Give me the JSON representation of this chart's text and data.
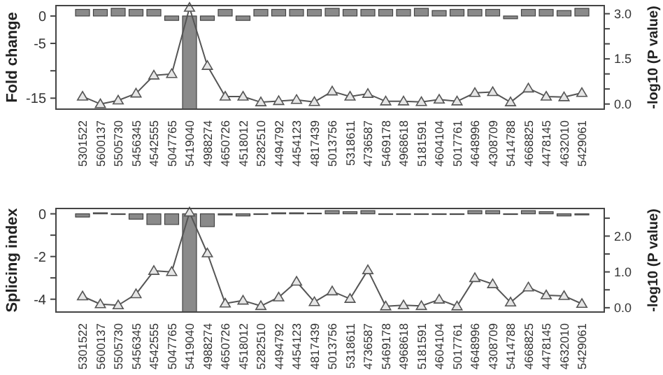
{
  "chart_data": [
    {
      "type": "bar",
      "ylabel": "Fold change",
      "y2label": "-log10 (P value)",
      "categories": [
        "5301522",
        "5600137",
        "5505730",
        "5456345",
        "4542555",
        "5047765",
        "5419040",
        "4988274",
        "4650726",
        "4518012",
        "5282510",
        "4494792",
        "4454123",
        "4817439",
        "5013756",
        "5318611",
        "4736587",
        "5469178",
        "4968618",
        "5181591",
        "4604104",
        "5017761",
        "4648996",
        "4308709",
        "5414788",
        "4668825",
        "4478145",
        "4632010",
        "5429061"
      ],
      "series": [
        {
          "color": "#8a8a8a",
          "values": [
            1.2,
            1.2,
            1.4,
            1.2,
            1.2,
            -0.8,
            -17,
            -0.8,
            1.2,
            -0.8,
            1.2,
            1.2,
            1.2,
            1.2,
            1.4,
            1.2,
            1.2,
            1.2,
            1.2,
            1.4,
            1.0,
            1.2,
            1.2,
            1.2,
            -0.5,
            1.2,
            1.2,
            1.0,
            1.4
          ]
        },
        {
          "type": "line",
          "axis": "y2",
          "color": "#555555",
          "values": [
            0.25,
            0.0,
            0.12,
            0.35,
            0.95,
            1.0,
            3.2,
            1.27,
            0.25,
            0.25,
            0.06,
            0.1,
            0.14,
            0.07,
            0.42,
            0.25,
            0.34,
            0.09,
            0.09,
            0.07,
            0.15,
            0.09,
            0.37,
            0.4,
            0.06,
            0.52,
            0.25,
            0.23,
            0.37
          ]
        }
      ],
      "ylim": [
        -17,
        1.9
      ],
      "yticks": [
        0,
        -5,
        {
          "value": -10,
          "label": null
        },
        -15
      ],
      "y2lim": [
        -0.17,
        3.27
      ],
      "y2ticks": [
        {
          "value": 0,
          "label": "0.0"
        },
        {
          "value": 0.5,
          "label": null
        },
        {
          "value": 1,
          "label": null
        },
        1.5,
        {
          "value": 2,
          "label": null
        },
        {
          "value": 2.5,
          "label": null
        },
        {
          "value": 3,
          "label": "3.0"
        }
      ],
      "marker": "triangle",
      "grid": false
    },
    {
      "type": "bar",
      "ylabel": "Splicing index",
      "y2label": "-log10 (P value)",
      "categories": [
        "5301522",
        "5600137",
        "5505730",
        "5456345",
        "4542555",
        "5047765",
        "5419040",
        "4988274",
        "4650726",
        "4518012",
        "5282510",
        "4494792",
        "4454123",
        "4817439",
        "5013756",
        "5318611",
        "4736587",
        "5469178",
        "4968618",
        "5181591",
        "4604104",
        "5017761",
        "4648996",
        "4308709",
        "5414788",
        "4668825",
        "4478145",
        "4632010",
        "5429061"
      ],
      "series": [
        {
          "color": "#8a8a8a",
          "values": [
            -0.15,
            0.05,
            -0.03,
            -0.25,
            -0.5,
            -0.5,
            -4.6,
            -0.6,
            -0.05,
            -0.1,
            -0.03,
            0.05,
            0.05,
            0.03,
            0.15,
            0.1,
            0.15,
            -0.03,
            -0.03,
            -0.03,
            -0.03,
            -0.03,
            0.15,
            0.15,
            -0.03,
            0.15,
            0.1,
            -0.1,
            -0.05
          ]
        },
        {
          "type": "line",
          "axis": "y2",
          "color": "#555555",
          "values": [
            0.32,
            0.1,
            0.07,
            0.38,
            1.03,
            1.0,
            2.66,
            1.52,
            0.12,
            0.2,
            0.05,
            0.29,
            0.73,
            0.16,
            0.46,
            0.25,
            1.05,
            0.04,
            0.07,
            0.05,
            0.23,
            0.04,
            0.83,
            0.66,
            0.15,
            0.57,
            0.35,
            0.33,
            0.11
          ]
        }
      ],
      "ylim": [
        -4.6,
        0.25
      ],
      "yticks": [
        0,
        {
          "value": -1,
          "label": null
        },
        -2,
        {
          "value": -3,
          "label": null
        },
        -4
      ],
      "y2lim": [
        -0.12,
        2.77
      ],
      "y2ticks": [
        {
          "value": 0,
          "label": "0.0"
        },
        {
          "value": 0.5,
          "label": null
        },
        {
          "value": 1,
          "label": "1.0"
        },
        {
          "value": 1.5,
          "label": null
        },
        {
          "value": 2,
          "label": "2.0"
        },
        {
          "value": 2.5,
          "label": null
        }
      ],
      "marker": "triangle",
      "grid": false
    }
  ]
}
